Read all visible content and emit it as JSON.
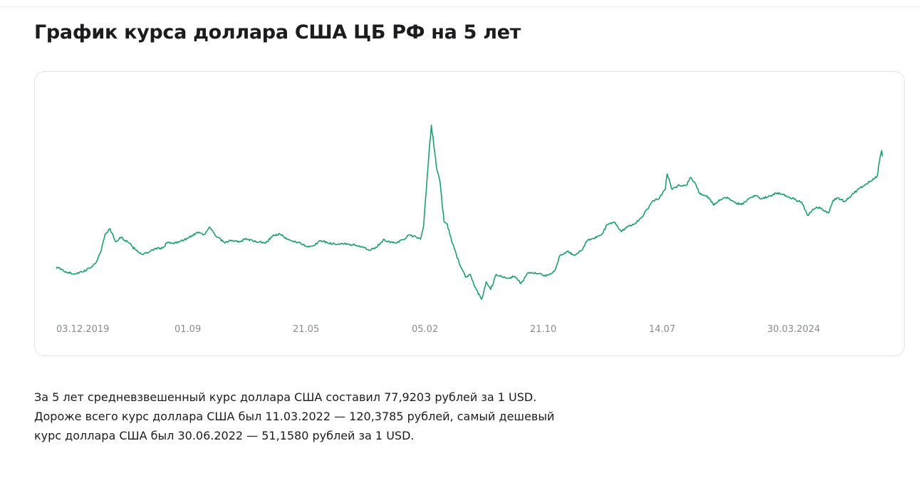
{
  "page": {
    "title": "График курса доллара США ЦБ РФ на 5 лет"
  },
  "summary": {
    "line1": "За 5 лет средневзвешенный курс доллара США составил 77,9203 рублей за 1 USD.",
    "line2": "Дороже всего курс доллара США был 11.03.2022 — 120,3785 рублей, самый дешевый",
    "line3": "курс доллара США был 30.06.2022 — 51,1580 рублей за 1 USD."
  },
  "chart_data": {
    "type": "line",
    "title": "",
    "xlabel": "",
    "ylabel": "",
    "grid": false,
    "legend": "none",
    "line_color": "#1f9d72",
    "x_ticks": [
      "03.12.2019",
      "01.09",
      "21.05",
      "05.02",
      "21.10",
      "14.07",
      "30.03.2024"
    ],
    "ylim": [
      48,
      124
    ],
    "series": [
      {
        "points": [
          [
            "2019-12-03",
            64.0
          ],
          [
            "2019-12-20",
            62.3
          ],
          [
            "2020-01-10",
            61.2
          ],
          [
            "2020-01-31",
            62.0
          ],
          [
            "2020-02-15",
            63.5
          ],
          [
            "2020-03-01",
            66.0
          ],
          [
            "2020-03-12",
            71.0
          ],
          [
            "2020-03-20",
            77.0
          ],
          [
            "2020-03-31",
            79.2
          ],
          [
            "2020-04-12",
            74.0
          ],
          [
            "2020-04-25",
            75.8
          ],
          [
            "2020-05-10",
            73.6
          ],
          [
            "2020-05-25",
            71.0
          ],
          [
            "2020-06-10",
            69.0
          ],
          [
            "2020-06-25",
            69.8
          ],
          [
            "2020-07-10",
            71.3
          ],
          [
            "2020-07-25",
            71.5
          ],
          [
            "2020-08-05",
            73.8
          ],
          [
            "2020-08-20",
            73.5
          ],
          [
            "2020-09-01",
            74.0
          ],
          [
            "2020-09-20",
            75.5
          ],
          [
            "2020-10-10",
            77.8
          ],
          [
            "2020-10-25",
            76.9
          ],
          [
            "2020-11-05",
            79.8
          ],
          [
            "2020-11-20",
            76.2
          ],
          [
            "2020-12-10",
            73.5
          ],
          [
            "2020-12-25",
            74.6
          ],
          [
            "2021-01-10",
            73.8
          ],
          [
            "2021-01-25",
            75.3
          ],
          [
            "2021-02-10",
            74.2
          ],
          [
            "2021-02-25",
            73.9
          ],
          [
            "2021-03-10",
            73.5
          ],
          [
            "2021-03-25",
            76.3
          ],
          [
            "2021-04-10",
            77.1
          ],
          [
            "2021-04-25",
            75.0
          ],
          [
            "2021-05-10",
            74.2
          ],
          [
            "2021-05-21",
            73.7
          ],
          [
            "2021-06-10",
            72.1
          ],
          [
            "2021-06-25",
            72.6
          ],
          [
            "2021-07-10",
            74.4
          ],
          [
            "2021-07-25",
            73.6
          ],
          [
            "2021-08-10",
            73.1
          ],
          [
            "2021-08-25",
            73.3
          ],
          [
            "2021-09-10",
            72.8
          ],
          [
            "2021-09-25",
            72.6
          ],
          [
            "2021-10-10",
            71.9
          ],
          [
            "2021-10-25",
            70.5
          ],
          [
            "2021-11-10",
            71.8
          ],
          [
            "2021-11-25",
            75.0
          ],
          [
            "2021-12-10",
            73.6
          ],
          [
            "2021-12-25",
            73.8
          ],
          [
            "2022-01-10",
            74.9
          ],
          [
            "2022-01-20",
            76.6
          ],
          [
            "2022-02-05",
            75.9
          ],
          [
            "2022-02-15",
            75.0
          ],
          [
            "2022-02-22",
            80.4
          ],
          [
            "2022-02-28",
            95.0
          ],
          [
            "2022-03-04",
            105.0
          ],
          [
            "2022-03-11",
            120.3785
          ],
          [
            "2022-03-16",
            113.0
          ],
          [
            "2022-03-22",
            104.0
          ],
          [
            "2022-03-30",
            98.0
          ],
          [
            "2022-04-08",
            82.0
          ],
          [
            "2022-04-15",
            81.0
          ],
          [
            "2022-04-25",
            74.0
          ],
          [
            "2022-05-05",
            69.0
          ],
          [
            "2022-05-15",
            64.0
          ],
          [
            "2022-05-25",
            60.0
          ],
          [
            "2022-06-05",
            61.0
          ],
          [
            "2022-06-15",
            56.0
          ],
          [
            "2022-06-30",
            51.158
          ],
          [
            "2022-07-10",
            58.0
          ],
          [
            "2022-07-20",
            55.0
          ],
          [
            "2022-08-01",
            61.0
          ],
          [
            "2022-08-15",
            60.0
          ],
          [
            "2022-08-25",
            59.4
          ],
          [
            "2022-09-10",
            60.2
          ],
          [
            "2022-09-25",
            57.4
          ],
          [
            "2022-10-10",
            61.6
          ],
          [
            "2022-10-21",
            61.5
          ],
          [
            "2022-11-05",
            61.3
          ],
          [
            "2022-11-15",
            60.4
          ],
          [
            "2022-11-30",
            61.1
          ],
          [
            "2022-12-10",
            63.0
          ],
          [
            "2022-12-20",
            68.5
          ],
          [
            "2023-01-05",
            70.2
          ],
          [
            "2023-01-20",
            68.7
          ],
          [
            "2023-02-05",
            70.5
          ],
          [
            "2023-02-20",
            74.7
          ],
          [
            "2023-03-05",
            75.3
          ],
          [
            "2023-03-20",
            76.5
          ],
          [
            "2023-04-05",
            80.9
          ],
          [
            "2023-04-20",
            81.8
          ],
          [
            "2023-05-05",
            78.0
          ],
          [
            "2023-05-20",
            80.2
          ],
          [
            "2023-06-05",
            81.4
          ],
          [
            "2023-06-20",
            84.0
          ],
          [
            "2023-07-01",
            87.0
          ],
          [
            "2023-07-14",
            90.4
          ],
          [
            "2023-07-25",
            91.0
          ],
          [
            "2023-08-10",
            95.0
          ],
          [
            "2023-08-14",
            101.04
          ],
          [
            "2023-08-25",
            94.8
          ],
          [
            "2023-09-10",
            96.5
          ],
          [
            "2023-09-25",
            96.4
          ],
          [
            "2023-10-05",
            99.6
          ],
          [
            "2023-10-15",
            97.3
          ],
          [
            "2023-10-25",
            93.1
          ],
          [
            "2023-11-10",
            92.3
          ],
          [
            "2023-11-25",
            88.5
          ],
          [
            "2023-12-10",
            90.8
          ],
          [
            "2023-12-25",
            91.7
          ],
          [
            "2024-01-10",
            89.7
          ],
          [
            "2024-01-25",
            88.7
          ],
          [
            "2024-02-10",
            91.0
          ],
          [
            "2024-02-25",
            92.4
          ],
          [
            "2024-03-10",
            91.2
          ],
          [
            "2024-03-30",
            92.3
          ],
          [
            "2024-04-10",
            93.3
          ],
          [
            "2024-04-25",
            93.0
          ],
          [
            "2024-05-10",
            91.8
          ],
          [
            "2024-05-25",
            90.5
          ],
          [
            "2024-06-05",
            89.8
          ],
          [
            "2024-06-20",
            84.5
          ],
          [
            "2024-07-01",
            87.0
          ],
          [
            "2024-07-15",
            87.8
          ],
          [
            "2024-07-25",
            86.5
          ],
          [
            "2024-08-05",
            85.5
          ],
          [
            "2024-08-15",
            90.5
          ],
          [
            "2024-08-25",
            91.5
          ],
          [
            "2024-09-10",
            90.0
          ],
          [
            "2024-09-25",
            92.7
          ],
          [
            "2024-10-10",
            95.0
          ],
          [
            "2024-10-25",
            96.8
          ],
          [
            "2024-11-05",
            98.0
          ],
          [
            "2024-11-20",
            100.0
          ],
          [
            "2024-11-27",
            108.0
          ],
          [
            "2024-11-30",
            110.3
          ],
          [
            "2024-12-02",
            108.0
          ]
        ]
      }
    ]
  }
}
